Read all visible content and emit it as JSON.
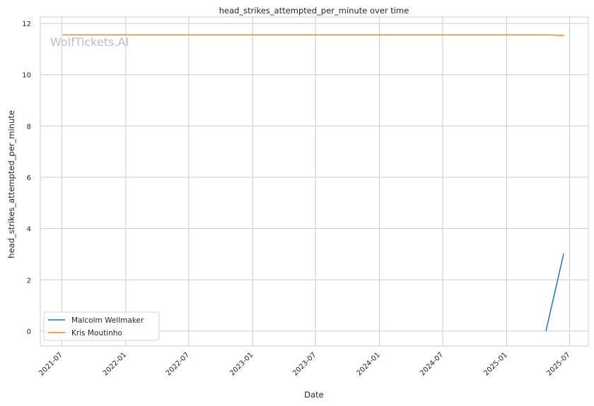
{
  "chart_data": {
    "type": "line",
    "title": "head_strikes_attempted_per_minute over time",
    "xlabel": "Date",
    "ylabel": "head_strikes_attempted_per_minute",
    "watermark": "WolfTickets.AI",
    "xlim": [
      "2021-04-30",
      "2025-08-24"
    ],
    "ylim": [
      -0.58,
      12.25
    ],
    "x_ticks": [
      "2021-07",
      "2022-01",
      "2022-07",
      "2023-01",
      "2023-07",
      "2024-01",
      "2024-07",
      "2025-01",
      "2025-07"
    ],
    "y_ticks": [
      0,
      2,
      4,
      6,
      8,
      10,
      12
    ],
    "grid": true,
    "legend_position": "lower-left",
    "series": [
      {
        "name": "Malcolm Wellmaker",
        "color": "#1f77b4",
        "x": [
          "2025-04-24",
          "2025-06-14"
        ],
        "y": [
          0,
          3.02
        ]
      },
      {
        "name": "Kris Moutinho",
        "color": "#ff7f0e",
        "x": [
          "2021-07-03",
          "2025-04-27",
          "2025-06-14"
        ],
        "y": [
          11.55,
          11.55,
          11.53
        ]
      }
    ]
  }
}
